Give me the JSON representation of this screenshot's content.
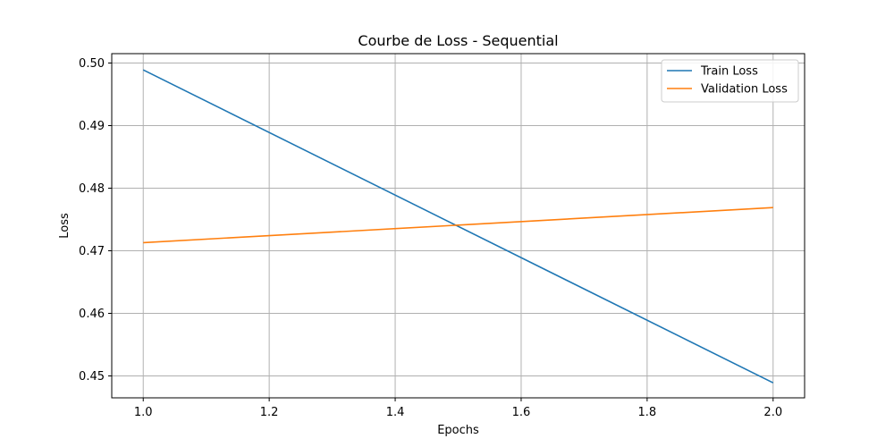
{
  "chart_data": {
    "type": "line",
    "title": "Courbe de Loss - Sequential",
    "xlabel": "Epochs",
    "ylabel": "Loss",
    "xlim": [
      0.95,
      2.05
    ],
    "ylim": [
      0.4465,
      0.5015
    ],
    "x_ticks": [
      1.0,
      1.2,
      1.4,
      1.6,
      1.8,
      2.0
    ],
    "x_tick_labels": [
      "1.0",
      "1.2",
      "1.4",
      "1.6",
      "1.8",
      "2.0"
    ],
    "y_ticks": [
      0.45,
      0.46,
      0.47,
      0.48,
      0.49,
      0.5
    ],
    "y_tick_labels": [
      "0.45",
      "0.46",
      "0.47",
      "0.48",
      "0.49",
      "0.50"
    ],
    "grid": true,
    "legend_position": "top-right",
    "series": [
      {
        "name": "Train Loss",
        "color": "#1f77b4",
        "x": [
          1,
          2
        ],
        "y": [
          0.4989,
          0.4489
        ]
      },
      {
        "name": "Validation Loss",
        "color": "#ff7f0e",
        "x": [
          1,
          2
        ],
        "y": [
          0.4713,
          0.4769
        ]
      }
    ]
  }
}
